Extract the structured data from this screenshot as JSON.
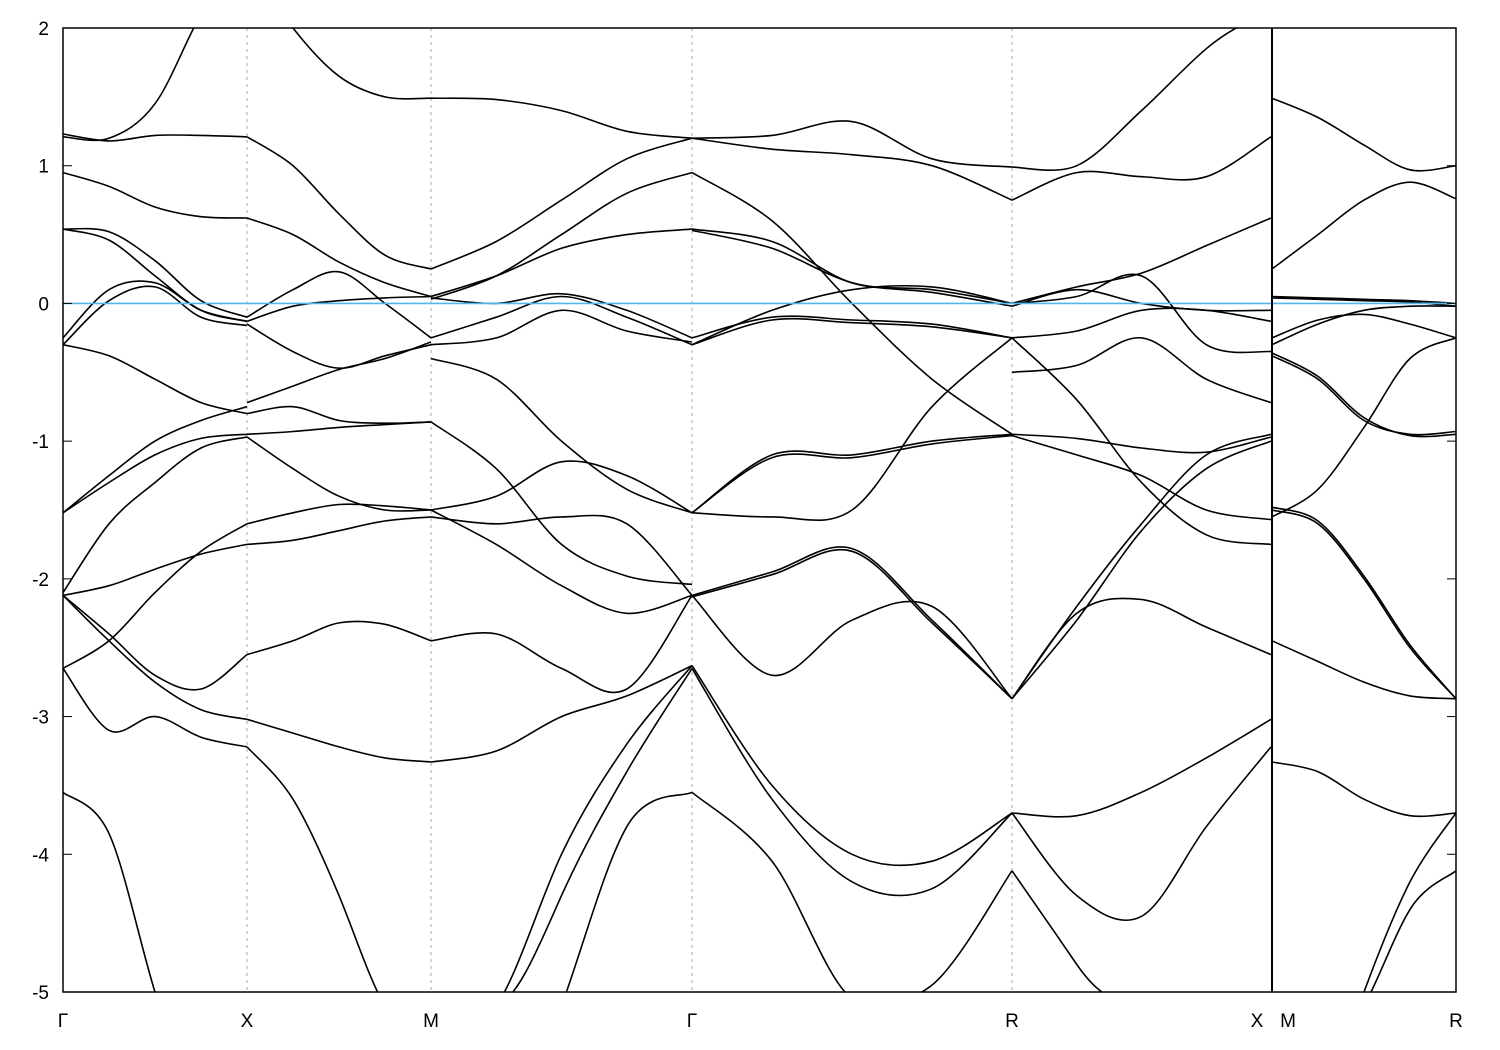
{
  "chart_data": {
    "type": "line",
    "title": "",
    "xlabel": "",
    "ylabel": "",
    "ylim": [
      -5,
      2
    ],
    "yticks": [
      "2",
      "1",
      "0",
      "-1",
      "-2",
      "-3",
      "-4",
      "-5"
    ],
    "ytick_values": [
      2,
      1,
      0,
      -1,
      -2,
      -3,
      -4,
      -5
    ],
    "kpoint_labels": [
      "Γ",
      "X",
      "M",
      "Γ",
      "R",
      "X",
      "M",
      "R"
    ],
    "fermi_level": 0,
    "colors": {
      "bands": "#000000",
      "fermi_line": "#56b4e9",
      "grid": "#aaaaaa"
    },
    "grid": "vertical dashed at high-symmetry points",
    "segments": [
      {
        "from": "Γ",
        "to": "X",
        "bands": [
          [
            1.23,
            1.18,
            1.22,
            1.22,
            1.21
          ],
          [
            1.21,
            1.2,
            1.45,
            2.1,
            2.6
          ],
          [
            0.95,
            0.85,
            0.7,
            0.63,
            0.62
          ],
          [
            0.54,
            0.52,
            0.31,
            0.02,
            -0.1
          ],
          [
            0.54,
            0.46,
            0.2,
            -0.05,
            -0.13
          ],
          [
            -0.25,
            0.1,
            0.15,
            -0.05,
            -0.13
          ],
          [
            -0.3,
            0.02,
            0.12,
            -0.1,
            -0.16
          ],
          [
            -0.3,
            -0.38,
            -0.55,
            -0.72,
            -0.8
          ],
          [
            -1.52,
            -1.3,
            -1.1,
            -0.98,
            -0.95
          ],
          [
            -1.52,
            -1.25,
            -1.0,
            -0.85,
            -0.75
          ],
          [
            -2.1,
            -1.6,
            -1.3,
            -1.05,
            -0.97
          ],
          [
            -2.12,
            -2.05,
            -1.93,
            -1.82,
            -1.75
          ],
          [
            -2.12,
            -2.4,
            -2.7,
            -2.8,
            -2.55
          ],
          [
            -2.12,
            -2.45,
            -2.75,
            -2.95,
            -3.02
          ],
          [
            -2.65,
            -2.45,
            -2.1,
            -1.8,
            -1.6
          ],
          [
            -2.65,
            -3.1,
            -3.0,
            -3.15,
            -3.22
          ],
          [
            -3.55,
            -3.85,
            -5.0,
            -6.0,
            -7.0
          ]
        ]
      },
      {
        "from": "X",
        "to": "M",
        "bands": [
          [
            2.5,
            2.0,
            1.65,
            1.5,
            1.49
          ],
          [
            1.21,
            1.0,
            0.65,
            0.35,
            0.25
          ],
          [
            0.62,
            0.5,
            0.3,
            0.15,
            0.05
          ],
          [
            -0.1,
            0.1,
            0.23,
            0.0,
            -0.25
          ],
          [
            -0.13,
            -0.02,
            0.02,
            0.04,
            0.05
          ],
          [
            -0.15,
            -0.35,
            -0.47,
            -0.38,
            -0.3
          ],
          [
            -0.72,
            -0.6,
            -0.48,
            -0.4,
            -0.28
          ],
          [
            -0.8,
            -0.75,
            -0.85,
            -0.87,
            -0.86
          ],
          [
            -0.95,
            -0.93,
            -0.9,
            -0.88,
            -0.86
          ],
          [
            -0.97,
            -1.2,
            -1.4,
            -1.5,
            -1.5
          ],
          [
            -1.6,
            -1.52,
            -1.46,
            -1.47,
            -1.5
          ],
          [
            -1.75,
            -1.72,
            -1.65,
            -1.58,
            -1.55
          ],
          [
            -2.55,
            -2.45,
            -2.32,
            -2.33,
            -2.45
          ],
          [
            -3.02,
            -3.12,
            -3.22,
            -3.3,
            -3.33
          ],
          [
            -3.22,
            -3.6,
            -4.3,
            -5.2,
            -6.0
          ]
        ]
      },
      {
        "from": "M",
        "to": "Γ",
        "bands": [
          [
            1.49,
            1.48,
            1.4,
            1.25,
            1.2
          ],
          [
            0.25,
            0.45,
            0.75,
            1.05,
            1.2
          ],
          [
            0.03,
            0.2,
            0.5,
            0.8,
            0.95
          ],
          [
            0.05,
            0.2,
            0.4,
            0.5,
            0.54
          ],
          [
            0.04,
            0.0,
            0.07,
            -0.05,
            -0.25
          ],
          [
            -0.25,
            -0.1,
            0.05,
            -0.1,
            -0.3
          ],
          [
            -0.3,
            -0.25,
            -0.05,
            -0.2,
            -0.28
          ],
          [
            -0.4,
            -0.55,
            -1.0,
            -1.35,
            -1.52
          ],
          [
            -0.86,
            -1.2,
            -1.75,
            -1.98,
            -2.04
          ],
          [
            -1.5,
            -1.4,
            -1.15,
            -1.25,
            -1.52
          ],
          [
            -1.55,
            -1.6,
            -1.55,
            -1.6,
            -2.12
          ],
          [
            -1.5,
            -1.75,
            -2.05,
            -2.25,
            -2.12
          ],
          [
            -2.45,
            -2.4,
            -2.65,
            -2.8,
            -2.12
          ],
          [
            -3.33,
            -3.25,
            -3.0,
            -2.85,
            -2.63
          ],
          [
            -6.0,
            -5.2,
            -4.0,
            -3.2,
            -2.63
          ],
          [
            -7.0,
            -5.5,
            -4.3,
            -3.4,
            -2.65
          ],
          [
            -8.0,
            -7.0,
            -5.2,
            -3.8,
            -3.55
          ]
        ]
      },
      {
        "from": "Γ",
        "to": "R",
        "bands": [
          [
            1.2,
            1.22,
            1.32,
            1.05,
            0.99
          ],
          [
            1.2,
            1.12,
            1.08,
            1.0,
            0.75
          ],
          [
            0.95,
            0.6,
            0.0,
            -0.55,
            -0.95
          ],
          [
            0.54,
            0.45,
            0.15,
            0.1,
            0.0
          ],
          [
            0.53,
            0.4,
            0.15,
            0.08,
            -0.02
          ],
          [
            -0.25,
            -0.1,
            -0.12,
            -0.15,
            -0.25
          ],
          [
            -0.3,
            -0.12,
            -0.14,
            -0.17,
            -0.25
          ],
          [
            -0.3,
            -0.05,
            0.1,
            0.12,
            0.0
          ],
          [
            -1.52,
            -1.1,
            -1.1,
            -1.0,
            -0.95
          ],
          [
            -1.52,
            -1.12,
            -1.12,
            -1.02,
            -0.96
          ],
          [
            -1.52,
            -1.55,
            -1.5,
            -0.75,
            -0.25
          ],
          [
            -2.12,
            -1.95,
            -1.78,
            -2.3,
            -2.87
          ],
          [
            -2.13,
            -1.97,
            -1.8,
            -2.32,
            -2.87
          ],
          [
            -2.12,
            -2.7,
            -2.3,
            -2.2,
            -2.87
          ],
          [
            -2.63,
            -3.5,
            -4.0,
            -4.05,
            -3.7
          ],
          [
            -2.65,
            -3.6,
            -4.2,
            -4.25,
            -3.7
          ],
          [
            -3.55,
            -4.05,
            -5.05,
            -4.95,
            -4.12
          ]
        ]
      },
      {
        "from": "R",
        "to": "X",
        "bands": [
          [
            0.99,
            1.0,
            1.4,
            1.85,
            2.2
          ],
          [
            0.75,
            0.95,
            0.92,
            0.92,
            1.21
          ],
          [
            0.0,
            0.12,
            0.22,
            0.42,
            0.62
          ],
          [
            -0.02,
            0.1,
            0.0,
            -0.05,
            -0.05
          ],
          [
            0.0,
            0.05,
            0.2,
            -0.3,
            -0.35
          ],
          [
            -0.25,
            -0.2,
            -0.05,
            -0.05,
            -0.13
          ],
          [
            -0.25,
            -0.7,
            -1.3,
            -1.68,
            -1.75
          ],
          [
            -0.95,
            -0.98,
            -1.05,
            -1.08,
            -0.97
          ],
          [
            -0.96,
            -1.1,
            -1.25,
            -1.5,
            -1.57
          ],
          [
            -0.5,
            -0.45,
            -0.25,
            -0.55,
            -0.72
          ],
          [
            -2.87,
            -2.2,
            -1.6,
            -1.1,
            -0.95
          ],
          [
            -2.87,
            -2.3,
            -1.65,
            -1.2,
            -1.0
          ],
          [
            -2.87,
            -2.25,
            -2.15,
            -2.35,
            -2.55
          ],
          [
            -3.7,
            -3.72,
            -3.55,
            -3.3,
            -3.02
          ],
          [
            -3.7,
            -4.3,
            -4.45,
            -3.8,
            -3.22
          ],
          [
            -4.12,
            -4.8,
            -5.5,
            -6.0,
            -6.0
          ]
        ]
      },
      {
        "from": "M",
        "to": "R",
        "bands": [
          [
            1.49,
            1.35,
            1.15,
            0.97,
            1.0
          ],
          [
            0.25,
            0.5,
            0.75,
            0.88,
            0.76
          ],
          [
            0.05,
            0.04,
            0.03,
            0.02,
            0.0
          ],
          [
            0.04,
            0.03,
            0.02,
            0.01,
            -0.02
          ],
          [
            -0.25,
            -0.12,
            -0.08,
            -0.15,
            -0.25
          ],
          [
            -0.3,
            -0.15,
            -0.05,
            -0.02,
            -0.02
          ],
          [
            -0.38,
            -0.55,
            -0.85,
            -0.95,
            -0.93
          ],
          [
            -0.36,
            -0.53,
            -0.83,
            -0.96,
            -0.95
          ],
          [
            -1.55,
            -1.35,
            -0.9,
            -0.4,
            -0.25
          ],
          [
            -1.5,
            -1.6,
            -2.0,
            -2.5,
            -2.87
          ],
          [
            -1.48,
            -1.58,
            -1.98,
            -2.48,
            -2.87
          ],
          [
            -2.45,
            -2.6,
            -2.75,
            -2.85,
            -2.87
          ],
          [
            -3.33,
            -3.4,
            -3.6,
            -3.72,
            -3.7
          ],
          [
            -7.0,
            -6.0,
            -5.0,
            -4.2,
            -3.7
          ],
          [
            -7.0,
            -6.2,
            -5.2,
            -4.4,
            -4.12
          ]
        ]
      }
    ]
  }
}
